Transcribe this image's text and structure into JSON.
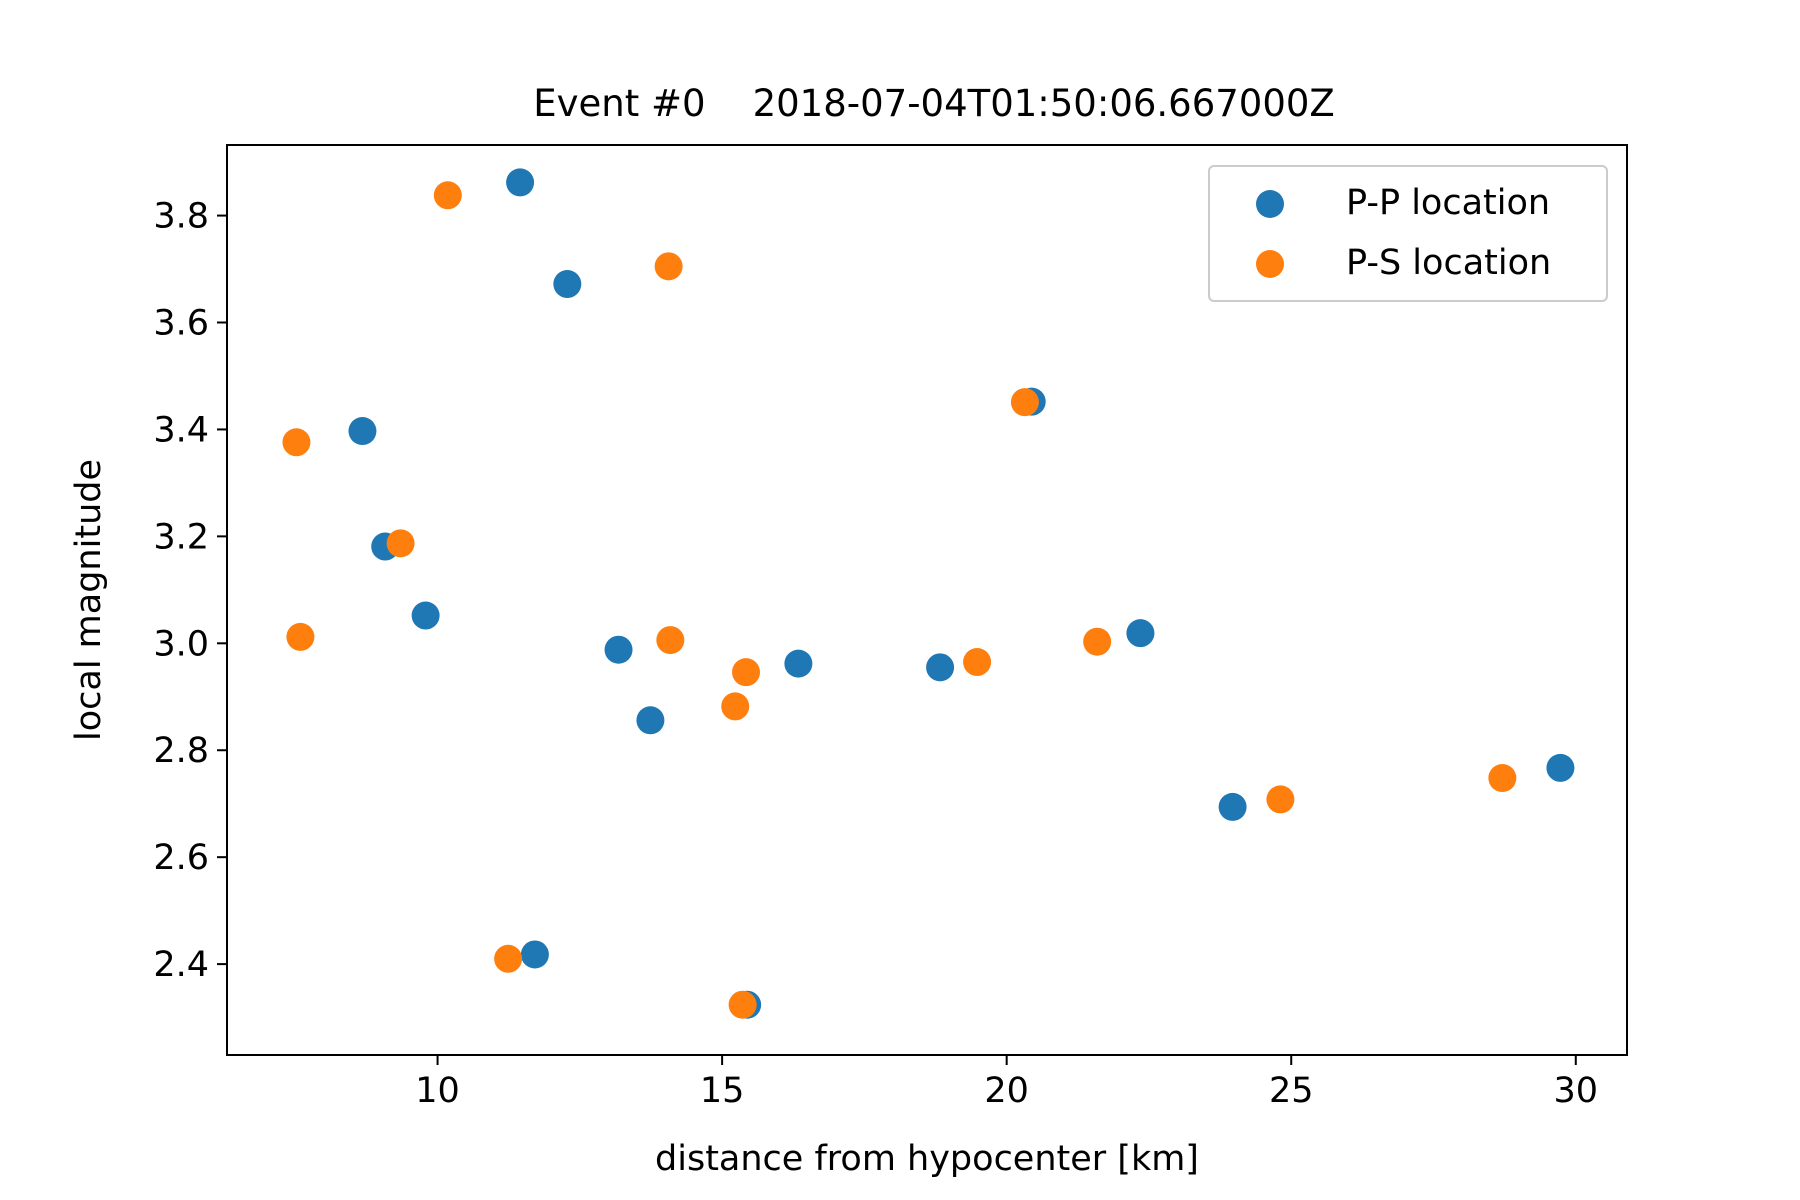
{
  "chart_data": {
    "type": "scatter",
    "title": "Event #0    2018-07-04T01:50:06.667000Z",
    "xlabel": "distance from hypocenter [km]",
    "ylabel": "local magnitude",
    "xlim": [
      6.3,
      30.9
    ],
    "ylim": [
      2.23,
      3.932
    ],
    "xticks": [
      10,
      15,
      20,
      25,
      30
    ],
    "yticks": [
      2.4,
      2.6,
      2.8,
      3.0,
      3.2,
      3.4,
      3.6,
      3.8
    ],
    "xtick_labels": [
      "10",
      "15",
      "20",
      "25",
      "30"
    ],
    "ytick_labels": [
      "2.4",
      "2.6",
      "2.8",
      "3.0",
      "3.2",
      "3.4",
      "3.6",
      "3.8"
    ],
    "grid": false,
    "legend_position": "top-right",
    "series": [
      {
        "name": "P-P location",
        "color": "#1f77b4",
        "points": [
          {
            "x": 11.45,
            "y": 3.862
          },
          {
            "x": 12.28,
            "y": 3.672
          },
          {
            "x": 8.68,
            "y": 3.397
          },
          {
            "x": 20.44,
            "y": 3.452
          },
          {
            "x": 9.08,
            "y": 3.181
          },
          {
            "x": 9.79,
            "y": 3.052
          },
          {
            "x": 13.18,
            "y": 2.988
          },
          {
            "x": 13.74,
            "y": 2.856
          },
          {
            "x": 16.34,
            "y": 2.962
          },
          {
            "x": 18.83,
            "y": 2.955
          },
          {
            "x": 22.35,
            "y": 3.019
          },
          {
            "x": 23.97,
            "y": 2.694
          },
          {
            "x": 29.73,
            "y": 2.767
          },
          {
            "x": 11.71,
            "y": 2.418
          },
          {
            "x": 15.44,
            "y": 2.324
          }
        ]
      },
      {
        "name": "P-S location",
        "color": "#ff7f0e",
        "points": [
          {
            "x": 10.18,
            "y": 3.838
          },
          {
            "x": 14.06,
            "y": 3.705
          },
          {
            "x": 7.52,
            "y": 3.376
          },
          {
            "x": 20.32,
            "y": 3.451
          },
          {
            "x": 9.35,
            "y": 3.187
          },
          {
            "x": 7.59,
            "y": 3.012
          },
          {
            "x": 14.09,
            "y": 3.006
          },
          {
            "x": 15.42,
            "y": 2.946
          },
          {
            "x": 15.23,
            "y": 2.882
          },
          {
            "x": 19.48,
            "y": 2.965
          },
          {
            "x": 21.59,
            "y": 3.003
          },
          {
            "x": 24.81,
            "y": 2.708
          },
          {
            "x": 28.71,
            "y": 2.748
          },
          {
            "x": 11.24,
            "y": 2.41
          },
          {
            "x": 15.36,
            "y": 2.324
          }
        ]
      }
    ]
  }
}
